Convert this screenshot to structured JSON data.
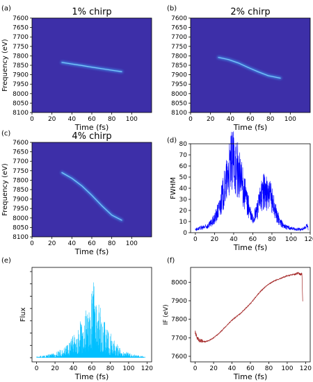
{
  "chart_data": [
    {
      "panel": "(a)",
      "type": "heatmap",
      "title": "1% chirp",
      "xlabel": "Time (fs)",
      "ylabel": "Frequency (eV)",
      "xlim": [
        0,
        120
      ],
      "ylim": [
        7600,
        8100
      ],
      "y_inverted": true,
      "xticks": [
        0,
        20,
        40,
        60,
        80,
        100
      ],
      "yticks": [
        7600,
        7650,
        7700,
        7750,
        7800,
        7850,
        7900,
        7950,
        8000,
        8050,
        8100
      ],
      "background_color": "#3d2fa8",
      "trace": {
        "t": [
          30,
          40,
          50,
          60,
          70,
          80,
          90
        ],
        "f": [
          7835,
          7843,
          7851,
          7860,
          7868,
          7876,
          7884
        ]
      }
    },
    {
      "panel": "(b)",
      "type": "heatmap",
      "title": "2% chirp",
      "xlabel": "Time (fs)",
      "ylabel": "",
      "xlim": [
        0,
        120
      ],
      "ylim": [
        7600,
        8100
      ],
      "y_inverted": true,
      "xticks": [
        0,
        20,
        40,
        60,
        80,
        100
      ],
      "yticks": [
        7600,
        7650,
        7700,
        7750,
        7800,
        7850,
        7900,
        7950,
        8000,
        8050,
        8100
      ],
      "background_color": "#3d2fa8",
      "trace": {
        "t": [
          28,
          38,
          48,
          58,
          68,
          78,
          90
        ],
        "f": [
          7808,
          7820,
          7838,
          7862,
          7885,
          7905,
          7918
        ]
      }
    },
    {
      "panel": "(c)",
      "type": "heatmap",
      "title": "4% chirp",
      "xlabel": "Time (fs)",
      "ylabel": "Frequency (eV)",
      "xlim": [
        0,
        120
      ],
      "ylim": [
        7600,
        8100
      ],
      "y_inverted": true,
      "xticks": [
        0,
        20,
        40,
        60,
        80,
        100
      ],
      "yticks": [
        7600,
        7650,
        7700,
        7750,
        7800,
        7850,
        7900,
        7950,
        8000,
        8050,
        8100
      ],
      "background_color": "#3d2fa8",
      "trace": {
        "t": [
          30,
          40,
          50,
          60,
          70,
          80,
          90
        ],
        "f": [
          7760,
          7790,
          7830,
          7880,
          7935,
          7985,
          8012
        ]
      }
    },
    {
      "panel": "(d)",
      "type": "line",
      "title": "",
      "xlabel": "Time (fs)",
      "ylabel": "FWHM",
      "xlim": [
        -5,
        120
      ],
      "ylim": [
        0,
        80
      ],
      "xticks": [
        0,
        20,
        40,
        60,
        80,
        100,
        120
      ],
      "yticks": [
        0,
        10,
        20,
        30,
        40,
        50,
        60,
        70,
        80
      ],
      "color": "#0000ff",
      "series": [
        {
          "x": [
            0,
            5,
            10,
            15,
            20,
            25,
            30,
            35,
            38,
            40,
            42,
            45,
            48,
            50,
            55,
            58,
            60,
            62,
            65,
            68,
            70,
            72,
            75,
            78,
            80,
            82,
            85,
            90,
            95,
            100,
            105,
            110,
            115,
            117,
            118
          ],
          "y": [
            3,
            4,
            5,
            7,
            12,
            22,
            38,
            55,
            64,
            65,
            62,
            55,
            45,
            40,
            25,
            15,
            12,
            15,
            22,
            30,
            35,
            38,
            35,
            33,
            30,
            25,
            15,
            8,
            5,
            4,
            3,
            3,
            4,
            8,
            3
          ]
        }
      ]
    },
    {
      "panel": "(e)",
      "type": "line",
      "title": "",
      "xlabel": "Time (fs)",
      "ylabel": "Flux",
      "xlim": [
        -5,
        125
      ],
      "xticks": [
        0,
        20,
        40,
        60,
        80,
        100,
        120
      ],
      "color": "#00bfff",
      "series": [
        {
          "x": [
            0,
            10,
            20,
            30,
            35,
            40,
            45,
            50,
            55,
            58,
            60,
            62,
            65,
            70,
            75,
            80,
            85,
            90,
            100,
            110,
            118
          ],
          "y": [
            0.01,
            0.02,
            0.04,
            0.08,
            0.12,
            0.18,
            0.25,
            0.33,
            0.42,
            0.5,
            0.55,
            0.6,
            0.5,
            0.38,
            0.28,
            0.2,
            0.14,
            0.08,
            0.04,
            0.02,
            0.01
          ]
        }
      ]
    },
    {
      "panel": "(f)",
      "type": "line",
      "title": "",
      "xlabel": "Time (fs)",
      "ylabel": "IF (eV)",
      "xlim": [
        -5,
        125
      ],
      "ylim": [
        7570,
        8080
      ],
      "xticks": [
        0,
        20,
        40,
        60,
        80,
        100,
        120
      ],
      "yticks": [
        7600,
        7700,
        7800,
        7900,
        8000
      ],
      "color": "#a52a2a",
      "series": [
        {
          "x": [
            0,
            2,
            5,
            10,
            15,
            20,
            25,
            30,
            35,
            40,
            45,
            50,
            55,
            60,
            65,
            70,
            75,
            80,
            85,
            90,
            95,
            100,
            105,
            110,
            112,
            115,
            116,
            117
          ],
          "y": [
            7730,
            7700,
            7685,
            7678,
            7685,
            7700,
            7720,
            7745,
            7770,
            7795,
            7815,
            7835,
            7860,
            7885,
            7915,
            7945,
            7970,
            7990,
            8005,
            8015,
            8025,
            8035,
            8040,
            8045,
            8048,
            8040,
            8050,
            7870
          ]
        }
      ]
    }
  ],
  "panel_labels": [
    "(a)",
    "(b)",
    "(c)",
    "(d)",
    "(e)",
    "(f)"
  ]
}
